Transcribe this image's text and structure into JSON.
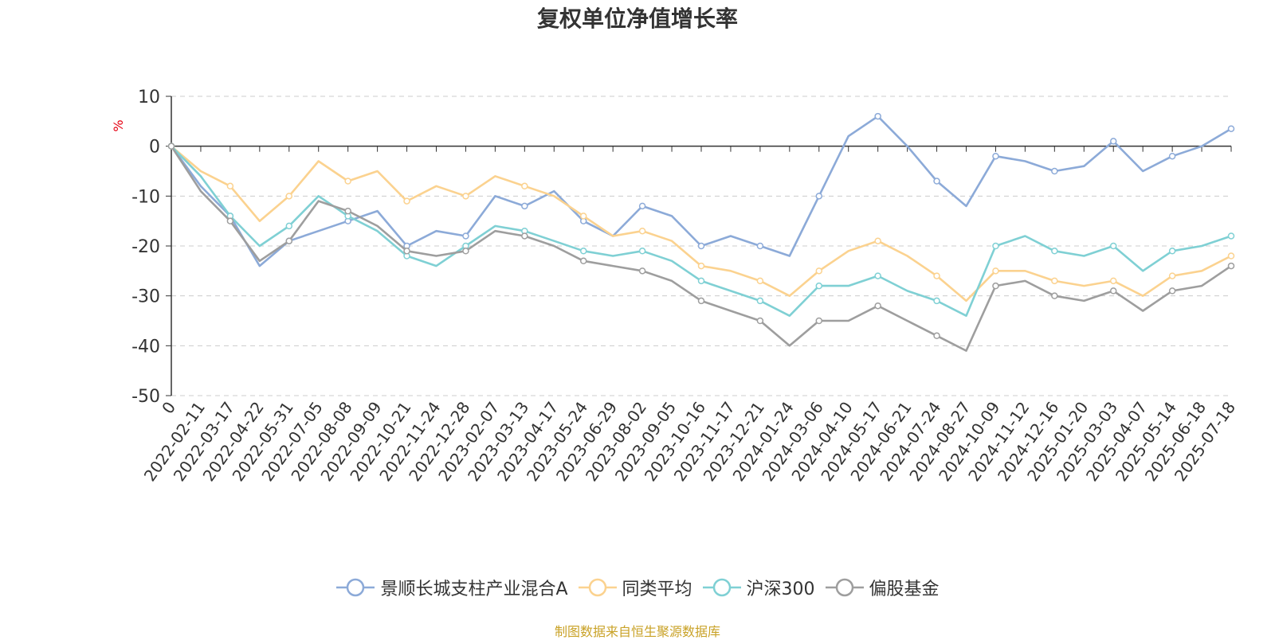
{
  "title": "复权单位净值增长率",
  "source": "制图数据来自恒生聚源数据库",
  "chart_data": {
    "type": "line",
    "title": "复权单位净值增长率",
    "ylabel": "%",
    "ylim": [
      -50,
      10
    ],
    "yticks": [
      10,
      0,
      -10,
      -20,
      -30,
      -40,
      -50
    ],
    "grid": "horizontal-dashed",
    "legend_position": "bottom-center",
    "x": [
      "0",
      "2022-02-11",
      "2022-03-17",
      "2022-04-22",
      "2022-05-31",
      "2022-07-05",
      "2022-08-08",
      "2022-09-09",
      "2022-10-21",
      "2022-11-24",
      "2022-12-28",
      "2023-02-07",
      "2023-03-13",
      "2023-04-17",
      "2023-05-24",
      "2023-06-29",
      "2023-08-02",
      "2023-09-05",
      "2023-10-16",
      "2023-11-17",
      "2023-12-21",
      "2024-01-24",
      "2024-03-06",
      "2024-04-10",
      "2024-05-17",
      "2024-06-21",
      "2024-07-24",
      "2024-08-27",
      "2024-10-09",
      "2024-11-12",
      "2024-12-16",
      "2025-01-20",
      "2025-03-03",
      "2025-04-07",
      "2025-05-14",
      "2025-06-18",
      "2025-07-18"
    ],
    "series": [
      {
        "name": "景顺长城支柱产业混合A",
        "color": "#8caad8",
        "values": [
          0,
          -8,
          -14,
          -24,
          -19,
          -17,
          -15,
          -13,
          -20,
          -17,
          -18,
          -10,
          -12,
          -9,
          -15,
          -18,
          -12,
          -14,
          -20,
          -18,
          -20,
          -22,
          -10,
          2,
          6,
          0,
          -7,
          -12,
          -2,
          -3,
          -5,
          -4,
          1,
          -5,
          -2,
          0,
          3.5
        ]
      },
      {
        "name": "同类平均",
        "color": "#fbd28f",
        "values": [
          0,
          -5,
          -8,
          -15,
          -10,
          -3,
          -7,
          -5,
          -11,
          -8,
          -10,
          -6,
          -8,
          -10,
          -14,
          -18,
          -17,
          -19,
          -24,
          -25,
          -27,
          -30,
          -25,
          -21,
          -19,
          -22,
          -26,
          -31,
          -25,
          -25,
          -27,
          -28,
          -27,
          -30,
          -26,
          -25,
          -22
        ]
      },
      {
        "name": "沪深300",
        "color": "#7fd0d4",
        "values": [
          0,
          -6,
          -14,
          -20,
          -16,
          -10,
          -14,
          -17,
          -22,
          -24,
          -20,
          -16,
          -17,
          -19,
          -21,
          -22,
          -21,
          -23,
          -27,
          -29,
          -31,
          -34,
          -28,
          -28,
          -26,
          -29,
          -31,
          -34,
          -20,
          -18,
          -21,
          -22,
          -20,
          -25,
          -21,
          -20,
          -18
        ]
      },
      {
        "name": "偏股基金",
        "color": "#9e9e9e",
        "values": [
          0,
          -9,
          -15,
          -23,
          -19,
          -11,
          -13,
          -16,
          -21,
          -22,
          -21,
          -17,
          -18,
          -20,
          -23,
          -24,
          -25,
          -27,
          -31,
          -33,
          -35,
          -40,
          -35,
          -35,
          -32,
          -35,
          -38,
          -41,
          -28,
          -27,
          -30,
          -31,
          -29,
          -33,
          -29,
          -28,
          -24
        ]
      }
    ]
  }
}
